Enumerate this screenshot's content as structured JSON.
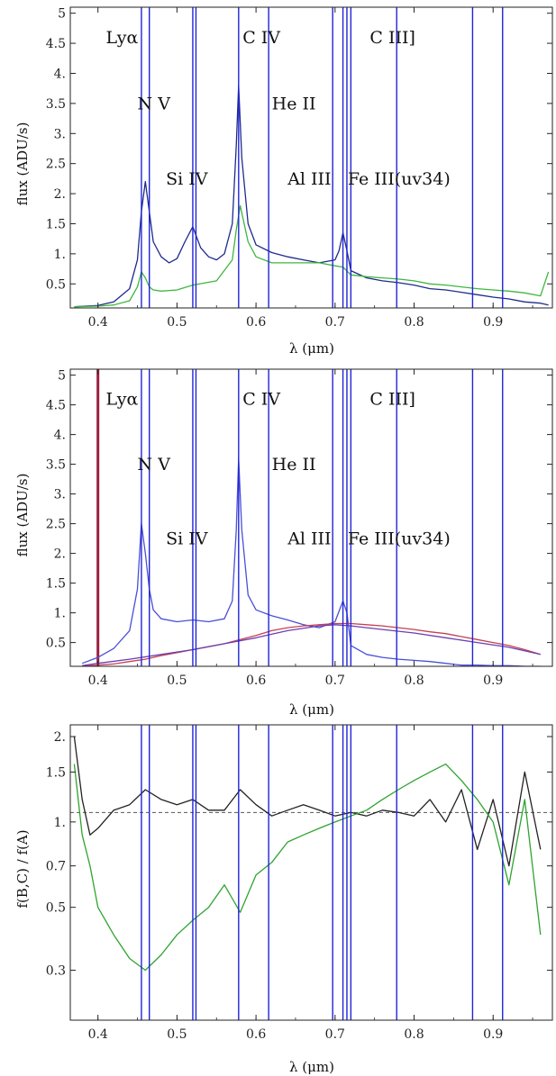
{
  "chart_data": [
    {
      "type": "line",
      "xlabel": "λ (μm)",
      "ylabel": "flux (ADU/s)",
      "xlim": [
        0.365,
        0.975
      ],
      "ylim": [
        0.1,
        5.1
      ],
      "yscale": "linear",
      "xticks": [
        "0.4",
        "0.5",
        "0.6",
        "0.7",
        "0.8",
        "0.9"
      ],
      "yticks": [
        "0.5",
        "1.",
        "1.5",
        "2.",
        "2.5",
        "3.",
        "3.5",
        "4.",
        "4.5",
        "5"
      ],
      "colors": {
        "series_0": "#1e2a8c",
        "series_1": "#3fb63f"
      },
      "series": [
        {
          "x": [
            0.37,
            0.4,
            0.42,
            0.44,
            0.45,
            0.455,
            0.46,
            0.465,
            0.47,
            0.48,
            0.49,
            0.5,
            0.51,
            0.52,
            0.53,
            0.54,
            0.55,
            0.56,
            0.57,
            0.575,
            0.578,
            0.582,
            0.59,
            0.6,
            0.62,
            0.64,
            0.66,
            0.68,
            0.7,
            0.705,
            0.71,
            0.715,
            0.72,
            0.74,
            0.76,
            0.78,
            0.8,
            0.82,
            0.84,
            0.86,
            0.88,
            0.9,
            0.92,
            0.94,
            0.96,
            0.97
          ],
          "y": [
            0.12,
            0.14,
            0.2,
            0.42,
            0.9,
            1.7,
            2.2,
            1.7,
            1.2,
            0.95,
            0.85,
            0.92,
            1.2,
            1.45,
            1.1,
            0.95,
            0.9,
            1.0,
            1.5,
            2.8,
            3.8,
            2.6,
            1.5,
            1.15,
            1.02,
            0.95,
            0.9,
            0.85,
            0.9,
            1.05,
            1.35,
            1.05,
            0.72,
            0.6,
            0.55,
            0.52,
            0.48,
            0.42,
            0.4,
            0.36,
            0.32,
            0.28,
            0.25,
            0.2,
            0.18,
            0.15
          ]
        },
        {
          "x": [
            0.37,
            0.4,
            0.42,
            0.44,
            0.45,
            0.455,
            0.46,
            0.465,
            0.47,
            0.48,
            0.5,
            0.52,
            0.55,
            0.57,
            0.575,
            0.58,
            0.59,
            0.6,
            0.62,
            0.65,
            0.68,
            0.7,
            0.71,
            0.72,
            0.74,
            0.76,
            0.78,
            0.8,
            0.82,
            0.84,
            0.86,
            0.88,
            0.9,
            0.92,
            0.94,
            0.96,
            0.97
          ],
          "y": [
            0.12,
            0.13,
            0.15,
            0.22,
            0.45,
            0.7,
            0.6,
            0.45,
            0.4,
            0.38,
            0.4,
            0.48,
            0.55,
            0.9,
            1.4,
            1.8,
            1.2,
            0.95,
            0.85,
            0.85,
            0.85,
            0.8,
            0.78,
            0.65,
            0.62,
            0.6,
            0.58,
            0.55,
            0.5,
            0.48,
            0.45,
            0.42,
            0.4,
            0.38,
            0.35,
            0.3,
            0.7
          ]
        }
      ],
      "vlines": [
        0.455,
        0.465,
        0.52,
        0.524,
        0.578,
        0.616,
        0.697,
        0.71,
        0.715,
        0.72,
        0.778,
        0.874,
        0.912
      ],
      "annotations": [
        {
          "text": "Lyα",
          "x": 0.41,
          "y": 4.5
        },
        {
          "text": "N V",
          "x": 0.45,
          "y": 3.4
        },
        {
          "text": "Si IV",
          "x": 0.486,
          "y": 2.15
        },
        {
          "text": "C IV",
          "x": 0.583,
          "y": 4.5
        },
        {
          "text": "He II",
          "x": 0.62,
          "y": 3.4
        },
        {
          "text": "Al III",
          "x": 0.64,
          "y": 2.15
        },
        {
          "text": "C III]",
          "x": 0.744,
          "y": 4.5
        },
        {
          "text": "Fe III(uv34)",
          "x": 0.716,
          "y": 2.15
        }
      ]
    },
    {
      "type": "line",
      "xlabel": "λ (μm)",
      "ylabel": "flux (ADU/s)",
      "xlim": [
        0.365,
        0.975
      ],
      "ylim": [
        0.1,
        5.1
      ],
      "yscale": "linear",
      "xticks": [
        "0.4",
        "0.5",
        "0.6",
        "0.7",
        "0.8",
        "0.9"
      ],
      "yticks": [
        "0.5",
        "1.",
        "1.5",
        "2.",
        "2.5",
        "3.",
        "3.5",
        "4.",
        "4.5",
        "5"
      ],
      "colors": {
        "series_0": "#4a4fd6",
        "series_1": "#c64050",
        "series_2": "#6b3fb0",
        "spike": "#9b1f3e"
      },
      "series": [
        {
          "x": [
            0.38,
            0.4,
            0.42,
            0.44,
            0.45,
            0.455,
            0.46,
            0.465,
            0.47,
            0.48,
            0.5,
            0.52,
            0.54,
            0.56,
            0.57,
            0.575,
            0.578,
            0.582,
            0.59,
            0.6,
            0.62,
            0.64,
            0.66,
            0.68,
            0.7,
            0.71,
            0.715,
            0.72,
            0.74,
            0.76,
            0.78,
            0.8,
            0.82,
            0.84,
            0.86,
            0.88,
            0.9,
            0.92,
            0.94,
            0.96
          ],
          "y": [
            0.15,
            0.25,
            0.4,
            0.7,
            1.4,
            2.5,
            2.0,
            1.4,
            1.05,
            0.9,
            0.85,
            0.88,
            0.85,
            0.9,
            1.2,
            2.4,
            3.6,
            2.4,
            1.3,
            1.05,
            0.95,
            0.88,
            0.8,
            0.75,
            0.85,
            1.2,
            1.0,
            0.45,
            0.3,
            0.25,
            0.22,
            0.2,
            0.18,
            0.15,
            0.12,
            0.12,
            0.11,
            0.11,
            0.1,
            0.1
          ]
        },
        {
          "x": [
            0.38,
            0.4,
            0.42,
            0.44,
            0.46,
            0.48,
            0.5,
            0.52,
            0.54,
            0.56,
            0.58,
            0.6,
            0.62,
            0.64,
            0.66,
            0.68,
            0.7,
            0.72,
            0.74,
            0.76,
            0.78,
            0.8,
            0.82,
            0.84,
            0.86,
            0.88,
            0.9,
            0.92,
            0.94,
            0.96
          ],
          "y": [
            0.1,
            0.12,
            0.14,
            0.18,
            0.22,
            0.28,
            0.33,
            0.38,
            0.43,
            0.48,
            0.55,
            0.62,
            0.7,
            0.75,
            0.78,
            0.8,
            0.82,
            0.82,
            0.8,
            0.78,
            0.75,
            0.72,
            0.68,
            0.65,
            0.6,
            0.55,
            0.5,
            0.45,
            0.38,
            0.3
          ]
        },
        {
          "x": [
            0.38,
            0.4,
            0.44,
            0.48,
            0.52,
            0.56,
            0.6,
            0.64,
            0.68,
            0.7,
            0.72,
            0.76,
            0.8,
            0.84,
            0.88,
            0.92,
            0.96
          ],
          "y": [
            0.11,
            0.15,
            0.22,
            0.3,
            0.38,
            0.48,
            0.58,
            0.7,
            0.78,
            0.8,
            0.78,
            0.72,
            0.66,
            0.58,
            0.5,
            0.42,
            0.3
          ]
        }
      ],
      "vlines": [
        0.455,
        0.465,
        0.52,
        0.524,
        0.578,
        0.616,
        0.697,
        0.71,
        0.715,
        0.72,
        0.778,
        0.874,
        0.912
      ],
      "spike_x": 0.4,
      "annotations": [
        {
          "text": "Lyα",
          "x": 0.41,
          "y": 4.5
        },
        {
          "text": "N V",
          "x": 0.45,
          "y": 3.4
        },
        {
          "text": "Si IV",
          "x": 0.486,
          "y": 2.15
        },
        {
          "text": "C IV",
          "x": 0.583,
          "y": 4.5
        },
        {
          "text": "He II",
          "x": 0.62,
          "y": 3.4
        },
        {
          "text": "Al III",
          "x": 0.64,
          "y": 2.15
        },
        {
          "text": "C III]",
          "x": 0.744,
          "y": 4.5
        },
        {
          "text": "Fe III(uv34)",
          "x": 0.716,
          "y": 2.15
        }
      ]
    },
    {
      "type": "line",
      "xlabel": "λ (μm)",
      "ylabel": "f(B,C) / f(A)",
      "xlim": [
        0.365,
        0.975
      ],
      "ylim": [
        0.2,
        2.2
      ],
      "yscale": "log",
      "xticks": [
        "0.4",
        "0.5",
        "0.6",
        "0.7",
        "0.8",
        "0.9"
      ],
      "yticks": [
        {
          "label": "0.3",
          "value": 0.3
        },
        {
          "label": "0.5",
          "value": 0.5
        },
        {
          "label": "0.7",
          "value": 0.7
        },
        {
          "label": "1.",
          "value": 1.0
        },
        {
          "label": "1.5",
          "value": 1.5
        },
        {
          "label": "2.",
          "value": 2.0
        }
      ],
      "reference_line": 1.08,
      "colors": {
        "series_0": "#222222",
        "series_1": "#2fa32f"
      },
      "series": [
        {
          "x": [
            0.37,
            0.38,
            0.39,
            0.4,
            0.42,
            0.44,
            0.46,
            0.48,
            0.5,
            0.52,
            0.54,
            0.56,
            0.58,
            0.6,
            0.62,
            0.64,
            0.66,
            0.68,
            0.7,
            0.72,
            0.74,
            0.76,
            0.78,
            0.8,
            0.82,
            0.84,
            0.86,
            0.88,
            0.9,
            0.92,
            0.94,
            0.96
          ],
          "y": [
            2.0,
            1.2,
            0.9,
            0.95,
            1.1,
            1.15,
            1.3,
            1.2,
            1.15,
            1.2,
            1.1,
            1.1,
            1.3,
            1.15,
            1.05,
            1.1,
            1.15,
            1.1,
            1.05,
            1.08,
            1.05,
            1.1,
            1.08,
            1.05,
            1.2,
            1.0,
            1.3,
            0.8,
            1.2,
            0.7,
            1.5,
            0.8
          ]
        },
        {
          "x": [
            0.37,
            0.38,
            0.39,
            0.4,
            0.42,
            0.44,
            0.46,
            0.48,
            0.5,
            0.52,
            0.54,
            0.56,
            0.58,
            0.6,
            0.62,
            0.64,
            0.66,
            0.68,
            0.7,
            0.72,
            0.74,
            0.76,
            0.78,
            0.8,
            0.82,
            0.84,
            0.86,
            0.88,
            0.9,
            0.92,
            0.94,
            0.96
          ],
          "y": [
            1.6,
            0.9,
            0.7,
            0.5,
            0.4,
            0.33,
            0.3,
            0.34,
            0.4,
            0.45,
            0.5,
            0.6,
            0.48,
            0.65,
            0.72,
            0.85,
            0.9,
            0.95,
            1.0,
            1.05,
            1.1,
            1.2,
            1.3,
            1.4,
            1.5,
            1.6,
            1.4,
            1.2,
            1.0,
            0.6,
            1.2,
            0.4
          ]
        }
      ],
      "vlines": [
        0.455,
        0.465,
        0.52,
        0.524,
        0.578,
        0.616,
        0.697,
        0.71,
        0.715,
        0.72,
        0.778,
        0.874,
        0.912
      ]
    }
  ]
}
